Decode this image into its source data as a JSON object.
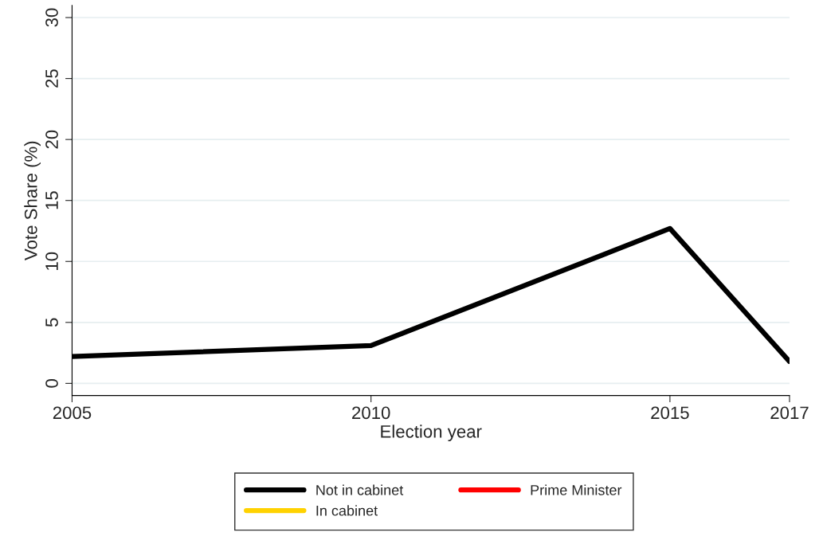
{
  "chart_data": {
    "type": "line",
    "xlabel": "Election year",
    "ylabel": "Vote Share (%)",
    "x": [
      2005,
      2010,
      2015,
      2017
    ],
    "series": [
      {
        "name": "Not in cabinet",
        "color": "#000000",
        "values": [
          2.2,
          3.1,
          12.7,
          1.8
        ]
      },
      {
        "name": "In cabinet",
        "color": "#ffd200",
        "values": [
          null,
          null,
          null,
          null
        ]
      },
      {
        "name": "Prime Minister",
        "color": "#ff0000",
        "values": [
          null,
          null,
          null,
          null
        ]
      }
    ],
    "xlim": [
      2005,
      2017
    ],
    "xticks": [
      2005,
      2010,
      2015,
      2017
    ],
    "ylim": [
      -1,
      31
    ],
    "yticks": [
      0,
      5,
      10,
      15,
      20,
      25,
      30
    ],
    "grid": "y",
    "legend": "bottom",
    "marker": "none",
    "line_style": "solid"
  }
}
